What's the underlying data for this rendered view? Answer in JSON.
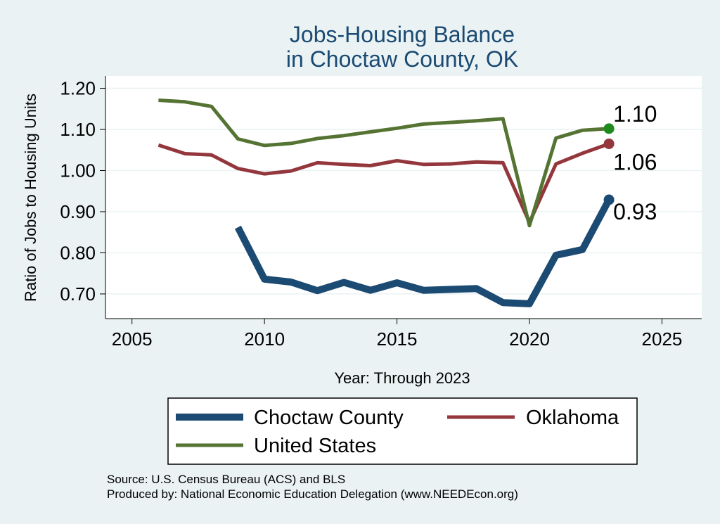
{
  "chart_data": {
    "type": "line",
    "title_lines": [
      "Jobs-Housing Balance",
      "in Choctaw County, OK"
    ],
    "xlabel": "Year: Through 2023",
    "ylabel": "Ratio of Jobs to Housing Units",
    "xlim": [
      2004,
      2026.5
    ],
    "ylim": [
      0.64,
      1.23
    ],
    "xticks": [
      2005,
      2010,
      2015,
      2020,
      2025
    ],
    "yticks": [
      0.7,
      0.8,
      0.9,
      1.0,
      1.1,
      1.2
    ],
    "ytick_labels": [
      "0.70",
      "0.80",
      "0.90",
      "1.00",
      "1.10",
      "1.20"
    ],
    "grid": true,
    "legend_position": "bottom",
    "series": [
      {
        "name": "Choctaw County",
        "color": "#1b4a72",
        "x": [
          2009,
          2010,
          2011,
          2012,
          2013,
          2014,
          2015,
          2016,
          2017,
          2018,
          2019,
          2020,
          2021,
          2022,
          2023
        ],
        "values": [
          0.862,
          0.736,
          0.729,
          0.708,
          0.728,
          0.709,
          0.727,
          0.709,
          0.711,
          0.713,
          0.679,
          0.676,
          0.794,
          0.808,
          0.929
        ],
        "end_label": "0.93",
        "end_dot_color": "#1b4a72"
      },
      {
        "name": "Oklahoma",
        "color": "#93373d",
        "x": [
          2006,
          2007,
          2008,
          2009,
          2010,
          2011,
          2012,
          2013,
          2014,
          2015,
          2016,
          2017,
          2018,
          2019,
          2020,
          2021,
          2022,
          2023
        ],
        "values": [
          1.062,
          1.041,
          1.038,
          1.005,
          0.992,
          0.999,
          1.019,
          1.015,
          1.012,
          1.024,
          1.015,
          1.016,
          1.021,
          1.019,
          0.874,
          1.016,
          1.042,
          1.065
        ],
        "end_label": "1.06",
        "end_dot_color": "#93373d"
      },
      {
        "name": "United States",
        "color": "#557332",
        "x": [
          2006,
          2007,
          2008,
          2009,
          2010,
          2011,
          2012,
          2013,
          2014,
          2015,
          2016,
          2017,
          2018,
          2019,
          2020,
          2021,
          2022,
          2023
        ],
        "values": [
          1.171,
          1.167,
          1.156,
          1.077,
          1.061,
          1.066,
          1.078,
          1.085,
          1.094,
          1.103,
          1.113,
          1.117,
          1.121,
          1.126,
          0.866,
          1.079,
          1.098,
          1.102
        ],
        "end_label": "1.10",
        "end_dot_color": "#1e8a1e"
      }
    ],
    "legend_entries": [
      "Choctaw County",
      "Oklahoma",
      "United States"
    ],
    "source_lines": [
      "Source: U.S. Census Bureau (ACS) and BLS",
      "Produced by: National Economic Education Delegation (www.NEEDEcon.org)"
    ]
  }
}
